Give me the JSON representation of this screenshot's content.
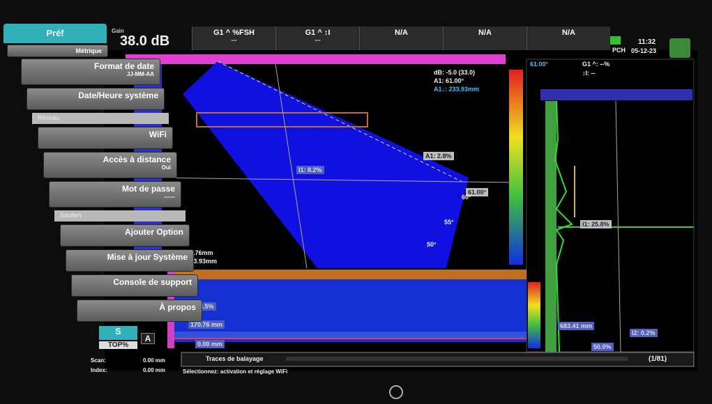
{
  "sidebar": {
    "tab": "Préf",
    "units": "Métrique",
    "items": [
      {
        "label": "Format de date",
        "value": "JJ-MM-AA"
      },
      {
        "label": "Date/Heure système"
      },
      {
        "section": "Réseau"
      },
      {
        "label": "WiFi"
      },
      {
        "label": "Accès à distance",
        "value": "Oui"
      },
      {
        "label": "Mot de passe",
        "value": "------"
      },
      {
        "section": "Soutien"
      },
      {
        "label": "Ajouter Option"
      },
      {
        "label": "Mise à jour Système"
      },
      {
        "label": "Console de support"
      },
      {
        "label": "À propos"
      }
    ]
  },
  "header": {
    "gain_label": "Gain",
    "gain": "38.0 dB",
    "fields": [
      {
        "label": "G1 ^ %FSH",
        "value": "---"
      },
      {
        "label": "G1 ^ ↕I",
        "value": "---"
      },
      {
        "label": "N/A"
      },
      {
        "label": "N/A"
      },
      {
        "label": "N/A"
      }
    ],
    "mode": "PCH",
    "time": "11:32",
    "date": "05-12-23"
  },
  "sscan": {
    "readouts": [
      "dB: -5.0 (33.0)",
      "A1: 61.00°",
      "A1↓: 233.93mm"
    ],
    "gate_a": "A1: 2.8%",
    "gate_i": "I1: 8.2%",
    "angle": "61.00°",
    "angles": [
      "60°",
      "55°",
      "50°"
    ],
    "bottom": [
      "L1: 170.76mm",
      "A1↓: 233.93mm"
    ]
  },
  "ascan": {
    "header": [
      "61.00°",
      "G1 ^: --%",
      "↕I: --"
    ],
    "gate_i": "I1: 25.8%",
    "depth": "683.41 mm",
    "gate_i2": "I2: 0.2%",
    "percent": "50.0%"
  },
  "cscan": {
    "labels": [
      "I2: 3.5%",
      "170.76 mm",
      "0.00 mm"
    ]
  },
  "footer": {
    "s": "S",
    "top": "TOP%",
    "a": "A",
    "scan_label": "Scan:",
    "scan_value": "0.00 mm",
    "index_label": "Index:",
    "index_value": "0.00 mm",
    "trace": "Traces de balayage",
    "page": "(1/81)",
    "hint": "Sélectionnez: activation et réglage WiFi"
  }
}
